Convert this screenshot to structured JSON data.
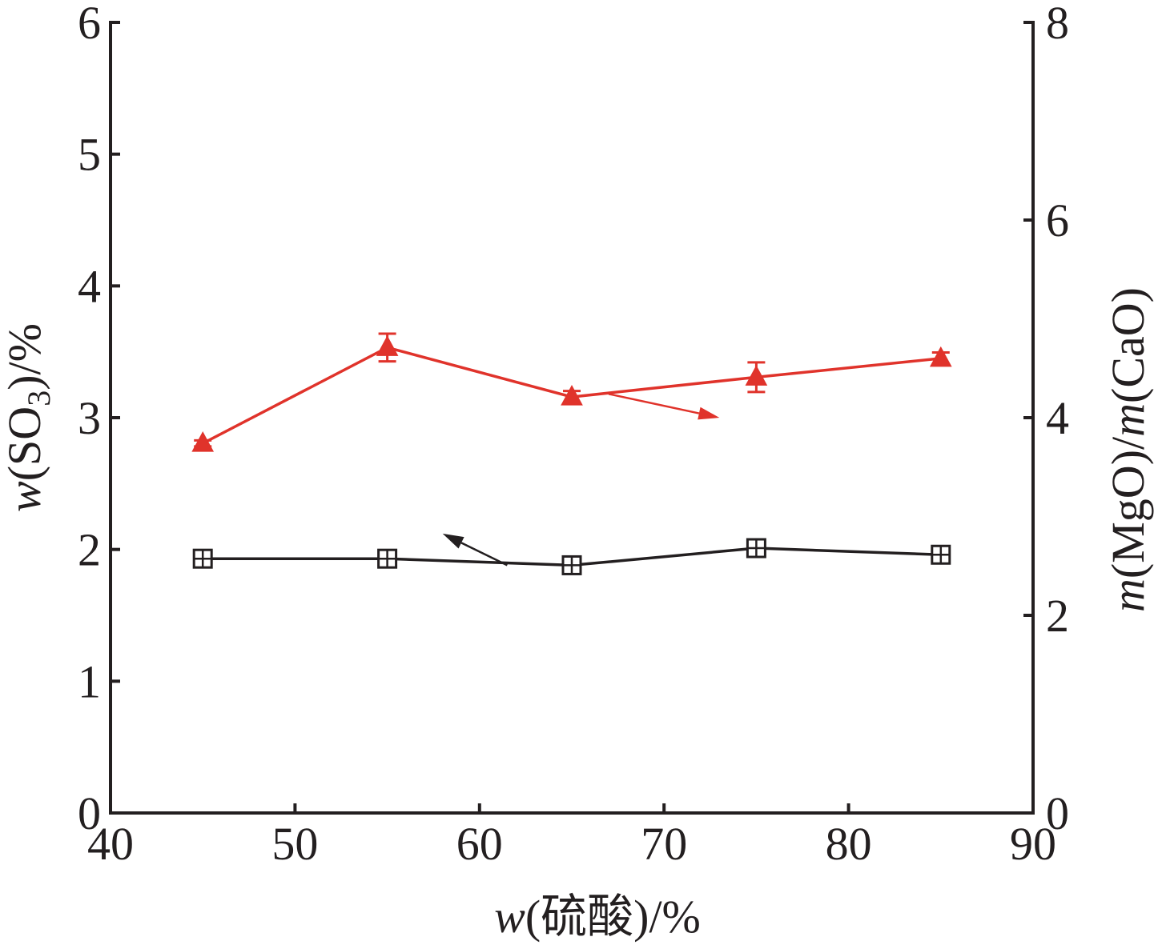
{
  "chart_data": {
    "type": "line",
    "xlabel": {
      "italic": "w",
      "rest": "(硫酸)/%"
    },
    "ylabel_left": {
      "italic": "w",
      "open": "(SO",
      "sub": "3",
      "close": ")/%"
    },
    "ylabel_right": {
      "italic1": "m",
      "mid": "(MgO)/",
      "italic2": "m",
      "end": "(CaO)"
    },
    "x_ticks": [
      40,
      50,
      60,
      70,
      80,
      90
    ],
    "y_left_ticks": [
      0,
      1,
      2,
      3,
      4,
      5,
      6
    ],
    "y_right_ticks": [
      0,
      2,
      4,
      6,
      8
    ],
    "xlim": [
      40,
      90
    ],
    "ylim_left": [
      0,
      6
    ],
    "ylim_right": [
      0,
      8
    ],
    "grid": false,
    "series": [
      {
        "axis": "left",
        "marker": "square-cross",
        "color": "#231f20",
        "x": [
          45,
          55,
          65,
          75,
          85
        ],
        "y": [
          1.93,
          1.93,
          1.88,
          2.01,
          1.96
        ],
        "err": [
          0.03,
          0.03,
          0.03,
          0.03,
          0.03
        ]
      },
      {
        "axis": "right",
        "marker": "triangle",
        "color": "#e0332b",
        "x": [
          45,
          55,
          65,
          75,
          85
        ],
        "y": [
          3.74,
          4.71,
          4.21,
          4.41,
          4.6
        ],
        "err": [
          0.03,
          0.14,
          0.06,
          0.15,
          0.06
        ]
      }
    ],
    "arrows": [
      {
        "color": "#231f20",
        "from": [
          61.5,
          1.88
        ],
        "to": [
          58,
          2.12
        ],
        "points_to": "left axis"
      },
      {
        "color": "#e0332b",
        "from": [
          67,
          4.24
        ],
        "to": [
          73,
          4.0
        ],
        "points_to": "right axis"
      }
    ]
  }
}
